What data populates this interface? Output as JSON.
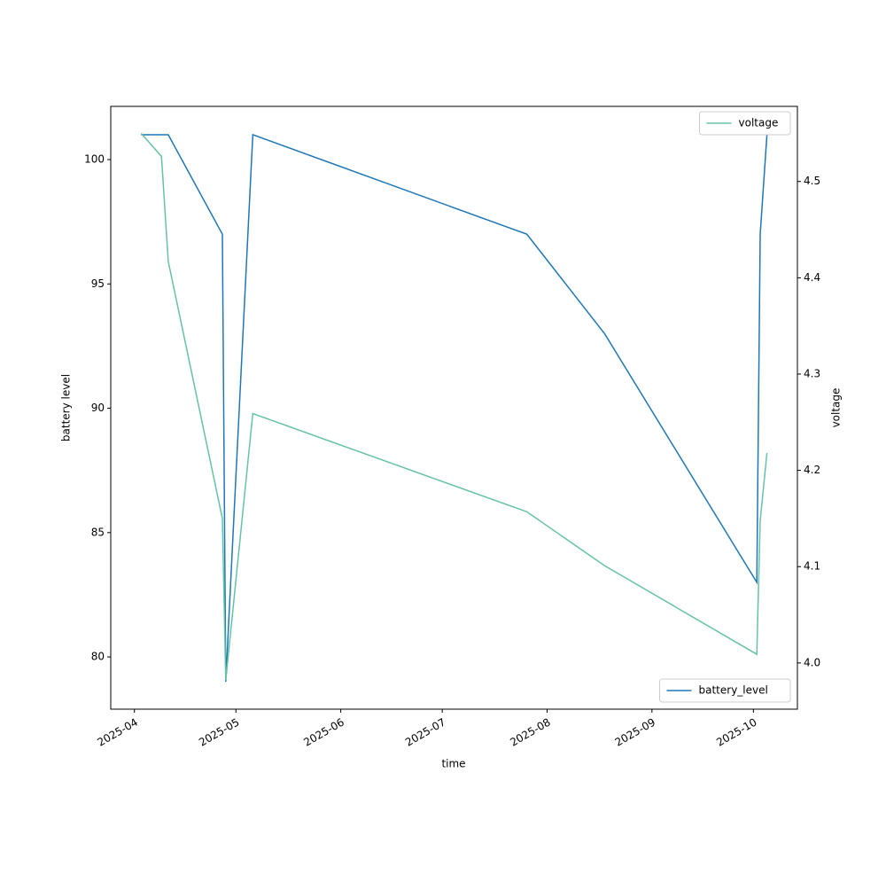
{
  "chart_data": {
    "type": "line",
    "x_label": "time",
    "y_label": "battery level",
    "y2_label": "voltage",
    "x": [
      "2025-04-03",
      "2025-04-09",
      "2025-04-11",
      "2025-04-27",
      "2025-04-28",
      "2025-05-06",
      "2025-07-26",
      "2025-08-18",
      "2025-10-02",
      "2025-10-03",
      "2025-10-05"
    ],
    "series": [
      {
        "name": "battery_level",
        "color": "#1f77b4",
        "axis": "y",
        "legend": "lower right",
        "values": [
          101,
          101,
          101,
          97,
          79,
          101,
          97,
          93,
          83,
          97,
          101
        ]
      },
      {
        "name": "voltage",
        "color": "#66c2a5",
        "axis": "y2",
        "legend": "upper right",
        "values": [
          4.55,
          4.526,
          4.417,
          4.15,
          3.982,
          4.259,
          4.157,
          4.101,
          4.009,
          4.148,
          4.218
        ]
      }
    ],
    "xlim": [
      "2025-03-25",
      "2025-10-14"
    ],
    "xticks": [
      {
        "value": "2025-04-01",
        "label": "2025-04"
      },
      {
        "value": "2025-05-01",
        "label": "2025-05"
      },
      {
        "value": "2025-06-01",
        "label": "2025-06"
      },
      {
        "value": "2025-07-01",
        "label": "2025-07"
      },
      {
        "value": "2025-08-01",
        "label": "2025-08"
      },
      {
        "value": "2025-09-01",
        "label": "2025-09"
      },
      {
        "value": "2025-10-01",
        "label": "2025-10"
      }
    ],
    "ylim": [
      77.9,
      102.14
    ],
    "yticks": [
      80,
      85,
      90,
      95,
      100
    ],
    "y2lim": [
      3.952,
      4.578
    ],
    "y2ticks": [
      {
        "value": 4,
        "label": "4.0"
      },
      4.1,
      4.2,
      4.3,
      4.4,
      4.5
    ],
    "grid": false
  }
}
